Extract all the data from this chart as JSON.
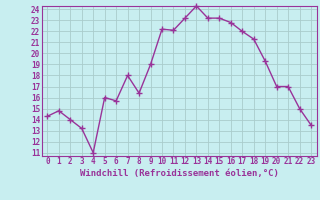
{
  "x": [
    0,
    1,
    2,
    3,
    4,
    5,
    6,
    7,
    8,
    9,
    10,
    11,
    12,
    13,
    14,
    15,
    16,
    17,
    18,
    19,
    20,
    21,
    22,
    23
  ],
  "y": [
    14.3,
    14.8,
    14.0,
    13.2,
    11.0,
    16.0,
    15.7,
    18.0,
    16.4,
    19.0,
    22.2,
    22.1,
    23.2,
    24.3,
    23.2,
    23.2,
    22.8,
    22.0,
    21.3,
    19.3,
    17.0,
    17.0,
    15.0,
    13.5
  ],
  "line_color": "#993399",
  "marker": "+",
  "bg_color": "#c8eef0",
  "grid_color": "#aacccc",
  "xlabel": "Windchill (Refroidissement éolien,°C)",
  "ylim": [
    11,
    24
  ],
  "xlim": [
    -0.5,
    23.5
  ],
  "yticks": [
    11,
    12,
    13,
    14,
    15,
    16,
    17,
    18,
    19,
    20,
    21,
    22,
    23,
    24
  ],
  "xticks": [
    0,
    1,
    2,
    3,
    4,
    5,
    6,
    7,
    8,
    9,
    10,
    11,
    12,
    13,
    14,
    15,
    16,
    17,
    18,
    19,
    20,
    21,
    22,
    23
  ],
  "xlabel_fontsize": 6.5,
  "tick_fontsize": 5.5,
  "line_width": 1.0,
  "marker_size": 4
}
